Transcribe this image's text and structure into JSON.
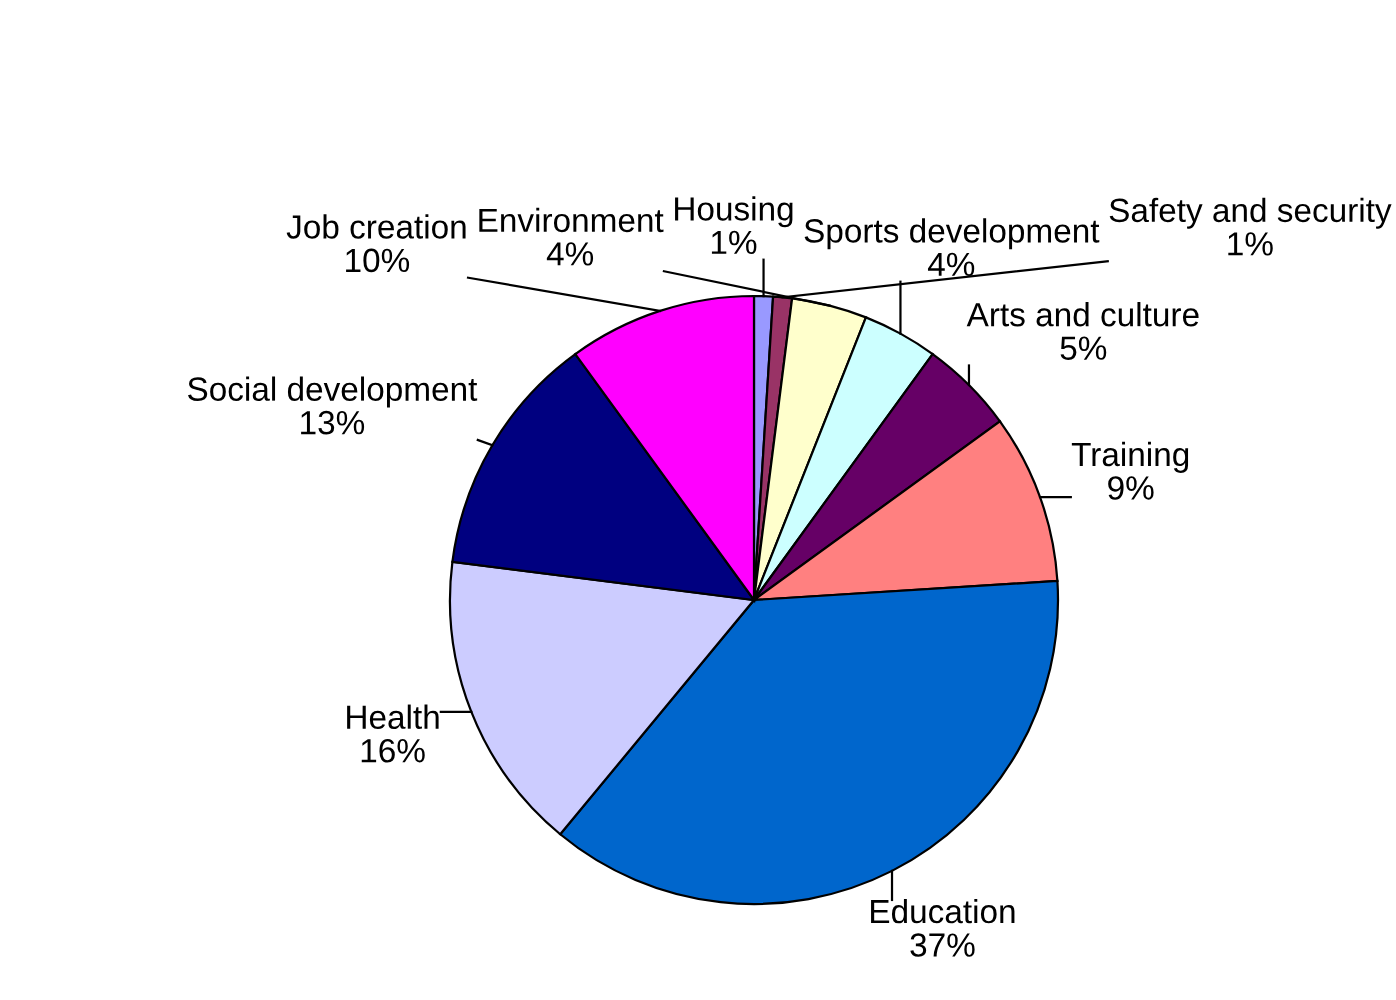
{
  "chart_data": {
    "type": "pie",
    "categories": [
      "Housing",
      "Safety and security",
      "Environment",
      "Sports development",
      "Arts and culture",
      "Training",
      "Education",
      "Health",
      "Social development",
      "Job creation"
    ],
    "values": [
      1,
      1,
      4,
      4,
      5,
      9,
      37,
      16,
      13,
      10
    ],
    "value_labels": [
      "1%",
      "1%",
      "4%",
      "4%",
      "5%",
      "9%",
      "37%",
      "16%",
      "13%",
      "10%"
    ],
    "colors": [
      "#9999ff",
      "#993366",
      "#ffffcc",
      "#ccffff",
      "#660066",
      "#ff8080",
      "#0066cc",
      "#ccccff",
      "#000080",
      "#ff00ff"
    ],
    "legend": false
  }
}
